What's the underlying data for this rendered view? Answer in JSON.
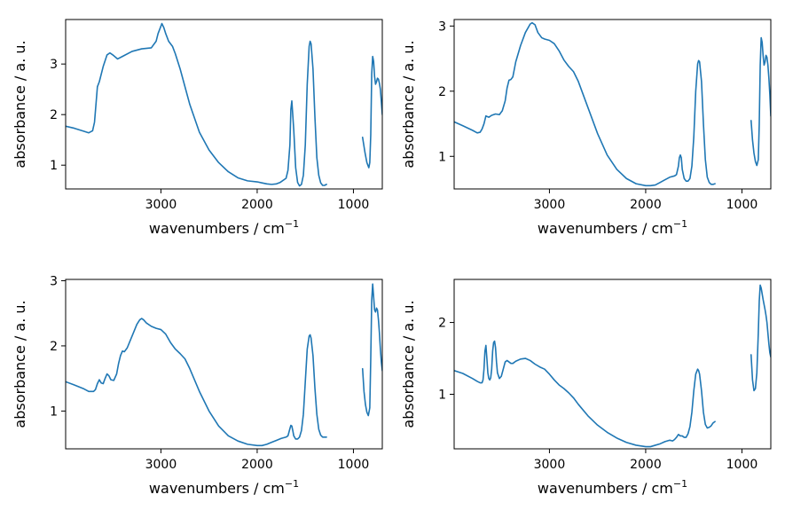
{
  "chart_data": [
    {
      "type": "line",
      "xlabel": "wavenumbers / cm",
      "xlabel_sup": "−1",
      "ylabel": "absorbance / a. u.",
      "xlim": [
        3990,
        700
      ],
      "ylim": [
        0.53,
        3.88
      ],
      "xticks": [
        3000,
        2000,
        1000
      ],
      "yticks": [
        1,
        2,
        3
      ],
      "color": "#1f77b4",
      "segments": [
        {
          "x": [
            3990,
            3900,
            3800,
            3750,
            3710,
            3690,
            3675,
            3660,
            3640,
            3600,
            3560,
            3530,
            3500,
            3450,
            3400,
            3300,
            3200,
            3100,
            3050,
            3030,
            3000,
            2990,
            2970,
            2950,
            2920,
            2880,
            2850,
            2800,
            2700,
            2600,
            2500,
            2400,
            2300,
            2200,
            2100,
            2000,
            1950,
            1900,
            1850,
            1800,
            1760,
            1700,
            1680,
            1660,
            1650,
            1640,
            1620,
            1600,
            1580,
            1560,
            1540,
            1520,
            1500,
            1480,
            1460,
            1450,
            1440,
            1420,
            1400,
            1380,
            1360,
            1340,
            1320,
            1300,
            1280
          ],
          "y": [
            1.77,
            1.73,
            1.67,
            1.64,
            1.68,
            1.85,
            2.2,
            2.55,
            2.65,
            2.95,
            3.18,
            3.22,
            3.18,
            3.1,
            3.15,
            3.25,
            3.3,
            3.32,
            3.45,
            3.6,
            3.75,
            3.8,
            3.72,
            3.6,
            3.45,
            3.35,
            3.2,
            2.9,
            2.2,
            1.65,
            1.3,
            1.05,
            0.87,
            0.75,
            0.69,
            0.67,
            0.65,
            0.63,
            0.62,
            0.63,
            0.66,
            0.74,
            0.9,
            1.4,
            2.1,
            2.27,
            1.7,
            0.95,
            0.66,
            0.59,
            0.62,
            0.8,
            1.4,
            2.6,
            3.35,
            3.45,
            3.4,
            2.9,
            1.95,
            1.15,
            0.8,
            0.65,
            0.6,
            0.6,
            0.62
          ]
        },
        {
          "x": [
            905,
            880,
            860,
            840,
            830,
            820,
            810,
            800,
            790,
            780,
            770,
            760,
            750,
            740,
            730,
            720,
            710,
            700
          ],
          "y": [
            1.55,
            1.25,
            1.05,
            0.95,
            1.05,
            1.6,
            2.8,
            3.15,
            3.05,
            2.75,
            2.6,
            2.65,
            2.72,
            2.7,
            2.62,
            2.5,
            2.25,
            2.0
          ]
        }
      ]
    },
    {
      "type": "line",
      "xlabel": "wavenumbers / cm",
      "xlabel_sup": "−1",
      "ylabel": "absorbance / a. u.",
      "xlim": [
        3990,
        700
      ],
      "ylim": [
        0.5,
        3.1
      ],
      "xticks": [
        3000,
        2000,
        1000
      ],
      "yticks": [
        1,
        2,
        3
      ],
      "color": "#1f77b4",
      "segments": [
        {
          "x": [
            3990,
            3900,
            3800,
            3750,
            3720,
            3700,
            3680,
            3660,
            3630,
            3600,
            3560,
            3520,
            3490,
            3460,
            3440,
            3420,
            3400,
            3380,
            3350,
            3300,
            3250,
            3200,
            3180,
            3150,
            3120,
            3080,
            3050,
            3000,
            2950,
            2900,
            2850,
            2800,
            2750,
            2700,
            2600,
            2500,
            2400,
            2300,
            2200,
            2100,
            2000,
            1950,
            1900,
            1850,
            1800,
            1750,
            1700,
            1680,
            1660,
            1650,
            1640,
            1630,
            1620,
            1600,
            1580,
            1560,
            1540,
            1520,
            1500,
            1480,
            1460,
            1450,
            1440,
            1420,
            1400,
            1380,
            1360,
            1340,
            1320,
            1300,
            1280
          ],
          "y": [
            1.53,
            1.47,
            1.4,
            1.36,
            1.37,
            1.42,
            1.5,
            1.62,
            1.6,
            1.63,
            1.65,
            1.64,
            1.7,
            1.85,
            2.05,
            2.17,
            2.18,
            2.22,
            2.45,
            2.7,
            2.9,
            3.03,
            3.05,
            3.02,
            2.9,
            2.82,
            2.8,
            2.78,
            2.73,
            2.62,
            2.48,
            2.38,
            2.3,
            2.15,
            1.75,
            1.35,
            1.02,
            0.8,
            0.66,
            0.58,
            0.55,
            0.55,
            0.56,
            0.6,
            0.64,
            0.68,
            0.7,
            0.72,
            0.85,
            0.98,
            1.02,
            0.98,
            0.8,
            0.66,
            0.62,
            0.62,
            0.66,
            0.85,
            1.3,
            2.0,
            2.42,
            2.47,
            2.45,
            2.15,
            1.5,
            0.95,
            0.68,
            0.6,
            0.57,
            0.57,
            0.58
          ]
        },
        {
          "x": [
            905,
            890,
            875,
            860,
            845,
            830,
            820,
            810,
            800,
            790,
            780,
            770,
            760,
            750,
            740,
            730,
            720,
            710,
            700
          ],
          "y": [
            1.55,
            1.25,
            1.05,
            0.92,
            0.86,
            0.95,
            1.5,
            2.4,
            2.82,
            2.75,
            2.55,
            2.4,
            2.45,
            2.55,
            2.52,
            2.4,
            2.2,
            1.95,
            1.62
          ]
        }
      ]
    },
    {
      "type": "line",
      "xlabel": "wavenumbers / cm",
      "xlabel_sup": "−1",
      "ylabel": "absorbance / a. u.",
      "xlim": [
        3990,
        700
      ],
      "ylim": [
        0.42,
        3.02
      ],
      "xticks": [
        3000,
        2000,
        1000
      ],
      "yticks": [
        1,
        2,
        3
      ],
      "color": "#1f77b4",
      "segments": [
        {
          "x": [
            3990,
            3900,
            3800,
            3750,
            3700,
            3680,
            3660,
            3640,
            3620,
            3600,
            3580,
            3560,
            3540,
            3520,
            3490,
            3460,
            3440,
            3420,
            3400,
            3380,
            3350,
            3300,
            3250,
            3220,
            3200,
            3180,
            3150,
            3100,
            3050,
            3000,
            2950,
            2900,
            2850,
            2800,
            2750,
            2700,
            2600,
            2500,
            2400,
            2300,
            2200,
            2100,
            2000,
            1950,
            1900,
            1850,
            1800,
            1750,
            1700,
            1680,
            1660,
            1650,
            1640,
            1630,
            1620,
            1600,
            1580,
            1560,
            1540,
            1520,
            1500,
            1480,
            1460,
            1450,
            1440,
            1420,
            1400,
            1380,
            1360,
            1340,
            1320,
            1300,
            1280
          ],
          "y": [
            1.45,
            1.4,
            1.34,
            1.3,
            1.3,
            1.33,
            1.42,
            1.48,
            1.43,
            1.42,
            1.5,
            1.57,
            1.54,
            1.48,
            1.47,
            1.57,
            1.73,
            1.85,
            1.92,
            1.91,
            1.97,
            2.15,
            2.33,
            2.4,
            2.42,
            2.4,
            2.35,
            2.3,
            2.27,
            2.25,
            2.18,
            2.05,
            1.95,
            1.88,
            1.8,
            1.65,
            1.3,
            1.0,
            0.77,
            0.62,
            0.54,
            0.49,
            0.47,
            0.47,
            0.49,
            0.52,
            0.55,
            0.58,
            0.6,
            0.62,
            0.73,
            0.78,
            0.77,
            0.7,
            0.62,
            0.57,
            0.57,
            0.6,
            0.7,
            0.95,
            1.45,
            1.95,
            2.15,
            2.17,
            2.12,
            1.85,
            1.35,
            0.95,
            0.72,
            0.63,
            0.6,
            0.6,
            0.6
          ]
        },
        {
          "x": [
            905,
            890,
            875,
            860,
            845,
            830,
            820,
            810,
            800,
            790,
            780,
            770,
            760,
            750,
            740,
            730,
            720,
            710,
            700
          ],
          "y": [
            1.65,
            1.3,
            1.1,
            0.98,
            0.93,
            1.05,
            1.8,
            2.7,
            2.95,
            2.75,
            2.55,
            2.52,
            2.58,
            2.55,
            2.4,
            2.2,
            1.95,
            1.75,
            1.62
          ]
        }
      ]
    },
    {
      "type": "line",
      "xlabel": "wavenumbers / cm",
      "xlabel_sup": "−1",
      "ylabel": "absorbance / a. u.",
      "xlim": [
        3990,
        700
      ],
      "ylim": [
        0.24,
        2.6
      ],
      "xticks": [
        3000,
        2000,
        1000
      ],
      "yticks": [
        1,
        2
      ],
      "color": "#1f77b4",
      "segments": [
        {
          "x": [
            3990,
            3900,
            3800,
            3750,
            3720,
            3700,
            3690,
            3680,
            3670,
            3660,
            3650,
            3640,
            3630,
            3620,
            3610,
            3600,
            3590,
            3580,
            3570,
            3560,
            3550,
            3540,
            3520,
            3500,
            3480,
            3460,
            3440,
            3420,
            3400,
            3380,
            3350,
            3300,
            3250,
            3200,
            3150,
            3100,
            3050,
            3000,
            2950,
            2900,
            2850,
            2800,
            2750,
            2700,
            2600,
            2500,
            2400,
            2300,
            2200,
            2100,
            2000,
            1950,
            1900,
            1850,
            1800,
            1750,
            1720,
            1700,
            1680,
            1660,
            1640,
            1620,
            1600,
            1580,
            1560,
            1540,
            1520,
            1500,
            1480,
            1460,
            1450,
            1440,
            1420,
            1400,
            1380,
            1360,
            1340,
            1320,
            1300,
            1280
          ],
          "y": [
            1.33,
            1.29,
            1.22,
            1.18,
            1.16,
            1.16,
            1.2,
            1.35,
            1.6,
            1.68,
            1.5,
            1.3,
            1.22,
            1.2,
            1.23,
            1.35,
            1.6,
            1.72,
            1.74,
            1.65,
            1.45,
            1.3,
            1.22,
            1.25,
            1.35,
            1.45,
            1.47,
            1.45,
            1.43,
            1.43,
            1.46,
            1.49,
            1.5,
            1.47,
            1.42,
            1.38,
            1.35,
            1.28,
            1.2,
            1.13,
            1.08,
            1.02,
            0.95,
            0.86,
            0.7,
            0.57,
            0.47,
            0.39,
            0.33,
            0.29,
            0.27,
            0.27,
            0.29,
            0.31,
            0.34,
            0.36,
            0.35,
            0.37,
            0.4,
            0.44,
            0.42,
            0.42,
            0.4,
            0.4,
            0.45,
            0.55,
            0.75,
            1.05,
            1.28,
            1.35,
            1.33,
            1.28,
            1.05,
            0.75,
            0.58,
            0.53,
            0.54,
            0.56,
            0.6,
            0.62
          ]
        },
        {
          "x": [
            905,
            890,
            875,
            860,
            845,
            830,
            820,
            810,
            800,
            790,
            780,
            770,
            760,
            750,
            740,
            730,
            720,
            710,
            700
          ],
          "y": [
            1.55,
            1.2,
            1.05,
            1.08,
            1.3,
            1.85,
            2.3,
            2.52,
            2.48,
            2.4,
            2.32,
            2.25,
            2.18,
            2.1,
            2.0,
            1.85,
            1.7,
            1.58,
            1.52
          ]
        }
      ]
    }
  ]
}
